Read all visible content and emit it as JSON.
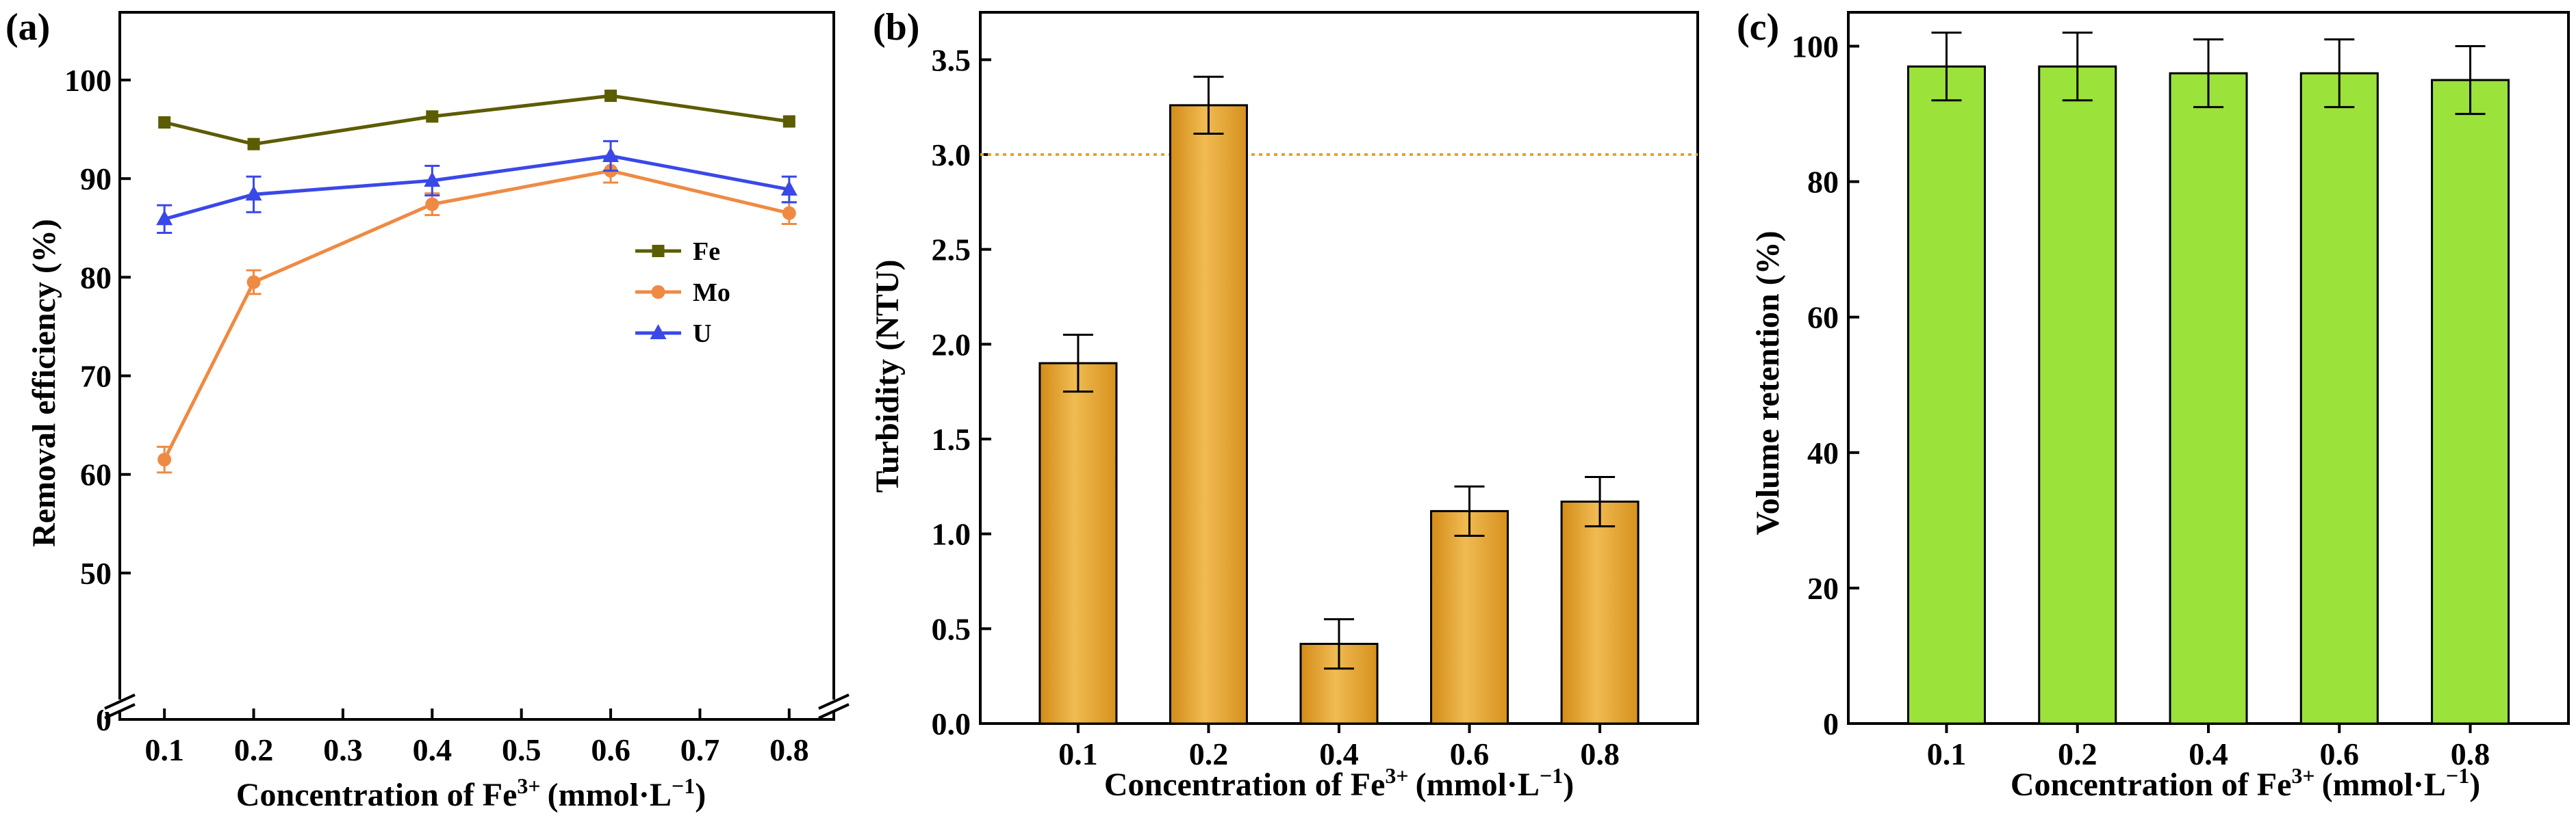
{
  "chart_data": [
    {
      "panel": "(a)",
      "type": "line",
      "title": "",
      "xlabel": "Concentration of Fe",
      "xlabel_sup": "3+",
      "xlabel_unit": "(mmol·L",
      "xlabel_unit_sup": "−1",
      "xlabel_close": ")",
      "ylabel": "Removal efficiency (%)",
      "xlim": [
        0.05,
        0.85
      ],
      "ylim_display": [
        0,
        105
      ],
      "axis_break": {
        "at": 0,
        "resumes": 45
      },
      "x_ticks": [
        0.1,
        0.2,
        0.3,
        0.4,
        0.5,
        0.6,
        0.7,
        0.8
      ],
      "x_tick_labels": [
        "0.1",
        "0.2",
        "0.3",
        "0.4",
        "0.5",
        "0.6",
        "0.7",
        "0.8"
      ],
      "y_ticks": [
        0,
        50,
        60,
        70,
        80,
        90,
        100
      ],
      "y_tick_labels": [
        "0",
        "50",
        "60",
        "70",
        "80",
        "90",
        "100"
      ],
      "x": [
        0.1,
        0.2,
        0.4,
        0.6,
        0.8
      ],
      "series": [
        {
          "name": "Fe",
          "color": "#5c5c00",
          "marker": "square",
          "values": [
            95.7,
            93.5,
            96.3,
            98.4,
            95.8
          ],
          "errors": [
            0,
            0,
            0,
            0,
            0
          ]
        },
        {
          "name": "Mo",
          "color": "#ef8a44",
          "marker": "circle",
          "values": [
            61.5,
            79.5,
            87.4,
            90.8,
            86.5
          ],
          "errors": [
            1.3,
            1.2,
            1.1,
            1.2,
            1.1
          ]
        },
        {
          "name": "U",
          "color": "#3a48e8",
          "marker": "triangle",
          "values": [
            85.9,
            88.4,
            89.8,
            92.3,
            88.9
          ],
          "errors": [
            1.4,
            1.8,
            1.5,
            1.5,
            1.3
          ]
        }
      ],
      "legend_position": "right-middle"
    },
    {
      "panel": "(b)",
      "type": "bar",
      "title": "",
      "xlabel": "Concentration of Fe",
      "xlabel_sup": "3+",
      "xlabel_unit": "(mmol·L",
      "xlabel_unit_sup": "−1",
      "xlabel_close": ")",
      "ylabel": "Turbidity (NTU)",
      "ylim": [
        0,
        3.75
      ],
      "y_ticks": [
        0.0,
        0.5,
        1.0,
        1.5,
        2.0,
        2.5,
        3.0,
        3.5
      ],
      "y_tick_labels": [
        "0.0",
        "0.5",
        "1.0",
        "1.5",
        "2.0",
        "2.5",
        "3.0",
        "3.5"
      ],
      "categories": [
        "0.1",
        "0.2",
        "0.4",
        "0.6",
        "0.8"
      ],
      "values": [
        1.9,
        3.26,
        0.42,
        1.12,
        1.17
      ],
      "errors": [
        0.15,
        0.15,
        0.13,
        0.13,
        0.13
      ],
      "bar_color": "#e4a32e",
      "reference_line": {
        "y": 3.0,
        "color": "#f0a020",
        "style": "dotted"
      }
    },
    {
      "panel": "(c)",
      "type": "bar",
      "title": "",
      "xlabel": "Concentration of Fe",
      "xlabel_sup": "3+",
      "xlabel_unit": "(mmol·L",
      "xlabel_unit_sup": "−1",
      "xlabel_close": ")",
      "ylabel": "Volume retention (%)",
      "ylim": [
        0,
        105
      ],
      "y_ticks": [
        0,
        20,
        40,
        60,
        80,
        100
      ],
      "y_tick_labels": [
        "0",
        "20",
        "40",
        "60",
        "80",
        "100"
      ],
      "categories": [
        "0.1",
        "0.2",
        "0.4",
        "0.6",
        "0.8"
      ],
      "values": [
        97,
        97,
        96,
        96,
        95
      ],
      "errors": [
        5,
        5,
        5,
        5,
        5
      ],
      "bar_color": "#9be23a"
    }
  ]
}
